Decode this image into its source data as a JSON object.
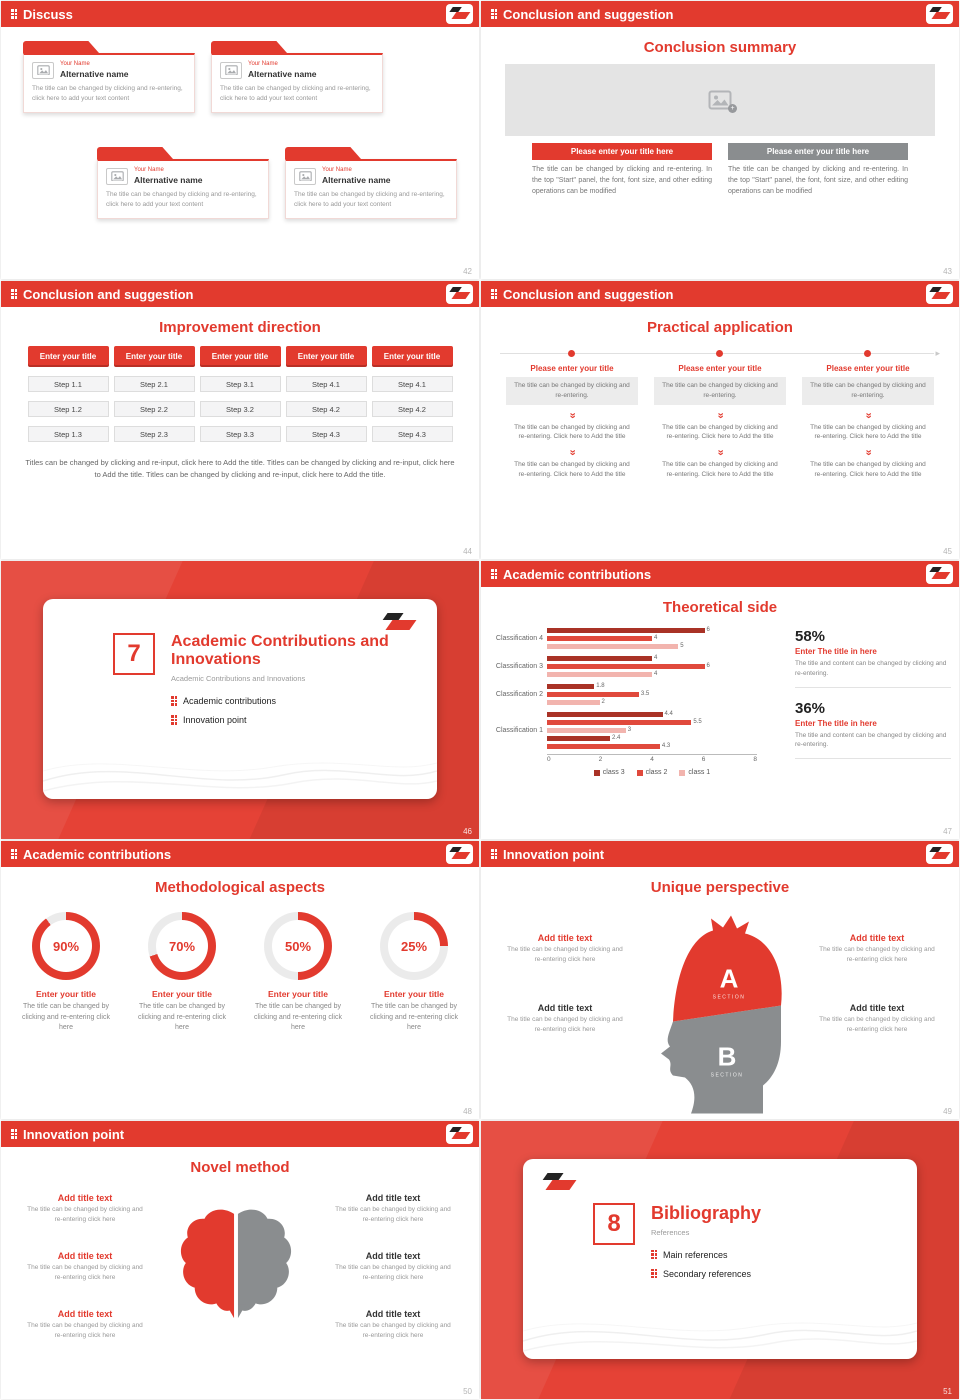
{
  "colors": {
    "accent_red": "#e23a2e",
    "cover_red": "#e54236",
    "dark_red": "#a93226",
    "mid_red": "#e0493c",
    "light_red": "#f2b4ae",
    "gray": "#8a8d8f",
    "light_gray": "#ececec",
    "text_gray": "#888888",
    "black": "#232323"
  },
  "icons": {
    "grid_dots": "2x3-dot-grid",
    "chevron_down_double": "»",
    "arrow_right": "▸",
    "plus_badge": "+",
    "image_placeholder": "picture-frame"
  },
  "slides": {
    "s42": {
      "header": "Discuss",
      "page": "42",
      "cards": [
        {
          "name": "Your Name",
          "alt": "Alternative name",
          "desc": "The title can be changed by clicking and re-entering, click here to add your text content"
        },
        {
          "name": "Your Name",
          "alt": "Alternative name",
          "desc": "The title can be changed by clicking and re-entering, click here to add your text content"
        },
        {
          "name": "Your Name",
          "alt": "Alternative name",
          "desc": "The title can be changed by clicking and re-entering, click here to add your text content"
        },
        {
          "name": "Your Name",
          "alt": "Alternative name",
          "desc": "The title can be changed by clicking and re-entering, click here to add your text content"
        }
      ]
    },
    "s43": {
      "header": "Conclusion and suggestion",
      "page": "43",
      "title": "Conclusion summary",
      "left_button": "Please enter your title here",
      "right_button": "Please enter your title here",
      "left_text": "The title can be changed by clicking and re-entering. In the top \"Start\" panel, the font, font size, and other editing operations can be modified",
      "right_text": "The title can be changed by clicking and re-entering. In the top \"Start\" panel, the font, font size, and other editing operations can be modified"
    },
    "s44": {
      "header": "Conclusion and suggestion",
      "page": "44",
      "title": "Improvement direction",
      "columns": [
        {
          "button": "Enter your title",
          "steps": [
            "Step 1.1",
            "Step 1.2",
            "Step 1.3"
          ]
        },
        {
          "button": "Enter your title",
          "steps": [
            "Step 2.1",
            "Step 2.2",
            "Step 2.3"
          ]
        },
        {
          "button": "Enter your title",
          "steps": [
            "Step 3.1",
            "Step 3.2",
            "Step 3.3"
          ]
        },
        {
          "button": "Enter your title",
          "steps": [
            "Step 4.1",
            "Step 4.2",
            "Step 4.3"
          ]
        },
        {
          "button": "Enter your title",
          "steps": [
            "Step 4.1",
            "Step 4.2",
            "Step 4.3"
          ]
        }
      ],
      "footer": "Titles can be changed by clicking and re-input, click here to Add the title. Titles can be changed by clicking and re-input, click here to Add the title. Titles can be changed by clicking and re-input, click here to Add the title."
    },
    "s45": {
      "header": "Conclusion and suggestion",
      "page": "45",
      "title": "Practical application",
      "columns": [
        {
          "title": "Please enter your title",
          "box": "The title can be changed by clicking and re-entering.",
          "step1": "The title can be changed by clicking and re-entering. Click here to Add the title",
          "step2": "The title can be changed by clicking and re-entering. Click here to Add the title"
        },
        {
          "title": "Please enter your title",
          "box": "The title can be changed by clicking and re-entering.",
          "step1": "The title can be changed by clicking and re-entering. Click here to Add the title",
          "step2": "The title can be changed by clicking and re-entering. Click here to Add the title"
        },
        {
          "title": "Please enter your title",
          "box": "The title can be changed by clicking and re-entering.",
          "step1": "The title can be changed by clicking and re-entering. Click here to Add the title",
          "step2": "The title can be changed by clicking and re-entering. Click here to Add the title"
        }
      ]
    },
    "s46": {
      "page": "46",
      "number": "7",
      "title": "Academic Contributions and Innovations",
      "subtitle": "Academic Contributions and Innovations",
      "bullets": [
        "Academic contributions",
        "Innovation point"
      ]
    },
    "s47": {
      "header": "Academic contributions",
      "page": "47",
      "title": "Theoretical side",
      "stats": [
        {
          "pct": "58%",
          "title": "Enter The title in here",
          "desc": "The title and content can be changed by clicking and re-entering."
        },
        {
          "pct": "36%",
          "title": "Enter The title in here",
          "desc": "The title and content can be changed by clicking and re-entering."
        }
      ]
    },
    "s48": {
      "header": "Academic contributions",
      "page": "48",
      "title": "Methodological aspects",
      "donuts": [
        {
          "pct": 90,
          "label": "90%",
          "title": "Enter your title",
          "desc": "The title can be changed by clicking and re-entering click here"
        },
        {
          "pct": 70,
          "label": "70%",
          "title": "Enter your title",
          "desc": "The title can be changed by clicking and re-entering click here"
        },
        {
          "pct": 50,
          "label": "50%",
          "title": "Enter your title",
          "desc": "The title can be changed by clicking and re-entering click here"
        },
        {
          "pct": 25,
          "label": "25%",
          "title": "Enter your title",
          "desc": "The title can be changed by clicking and re-entering click here"
        }
      ]
    },
    "s49": {
      "header": "Innovation point",
      "page": "49",
      "title": "Unique perspective",
      "sections": [
        {
          "letter": "A",
          "label": "SECTION"
        },
        {
          "letter": "B",
          "label": "SECTION"
        }
      ],
      "blocks": [
        {
          "title": "Add title text",
          "desc": "The title can be changed by clicking and re-entering click here"
        },
        {
          "title": "Add title text",
          "desc": "The title can be changed by clicking and re-entering click here"
        },
        {
          "title": "Add title text",
          "desc": "The title can be changed by clicking and re-entering click here"
        },
        {
          "title": "Add title text",
          "desc": "The title can be changed by clicking and re-entering click here"
        }
      ]
    },
    "s50": {
      "header": "Innovation point",
      "page": "50",
      "title": "Novel method",
      "blocks": [
        {
          "title": "Add title text",
          "desc": "The title can be changed by clicking and re-entering click here"
        },
        {
          "title": "Add title text",
          "desc": "The title can be changed by clicking and re-entering click here"
        },
        {
          "title": "Add title text",
          "desc": "The title can be changed by clicking and re-entering click here"
        },
        {
          "title": "Add title text",
          "desc": "The title can be changed by clicking and re-entering click here"
        },
        {
          "title": "Add title text",
          "desc": "The title can be changed by clicking and re-entering click here"
        },
        {
          "title": "Add title text",
          "desc": "The title can be changed by clicking and re-entering click here"
        }
      ]
    },
    "s51": {
      "page": "51",
      "number": "8",
      "title": "Bibliography",
      "subtitle": "References",
      "bullets": [
        "Main references",
        "Secondary references"
      ]
    }
  },
  "chart_data": {
    "type": "bar",
    "orientation": "horizontal",
    "title": "Theoretical side",
    "xlim": [
      0,
      8
    ],
    "ticks": [
      "0",
      "2",
      "4",
      "6",
      "8"
    ],
    "legend": [
      {
        "label": "class 3",
        "color": "#a93226"
      },
      {
        "label": "class 2",
        "color": "#e0493c"
      },
      {
        "label": "class 1",
        "color": "#f2b4ae"
      }
    ],
    "rows": [
      {
        "label": "Classification 4",
        "bars": [
          {
            "v": 6,
            "s": 0
          },
          {
            "v": 4,
            "s": 1
          },
          {
            "v": 5,
            "s": 2
          }
        ]
      },
      {
        "label": "Classification 3",
        "bars": [
          {
            "v": 4,
            "s": 0
          },
          {
            "v": 6,
            "s": 1
          },
          {
            "v": 4,
            "s": 2
          }
        ]
      },
      {
        "label": "Classification 2",
        "bars": [
          {
            "v": 1.8,
            "s": 0
          },
          {
            "v": 3.5,
            "s": 1
          },
          {
            "v": 2,
            "s": 2
          }
        ]
      },
      {
        "label": "Classification 1",
        "bars": [
          {
            "v": 4.4,
            "s": 0
          },
          {
            "v": 5.5,
            "s": 1
          },
          {
            "v": 3,
            "s": 2
          },
          {
            "v": 2.4,
            "s": 0
          },
          {
            "v": 4.3,
            "s": 1
          }
        ]
      }
    ]
  }
}
